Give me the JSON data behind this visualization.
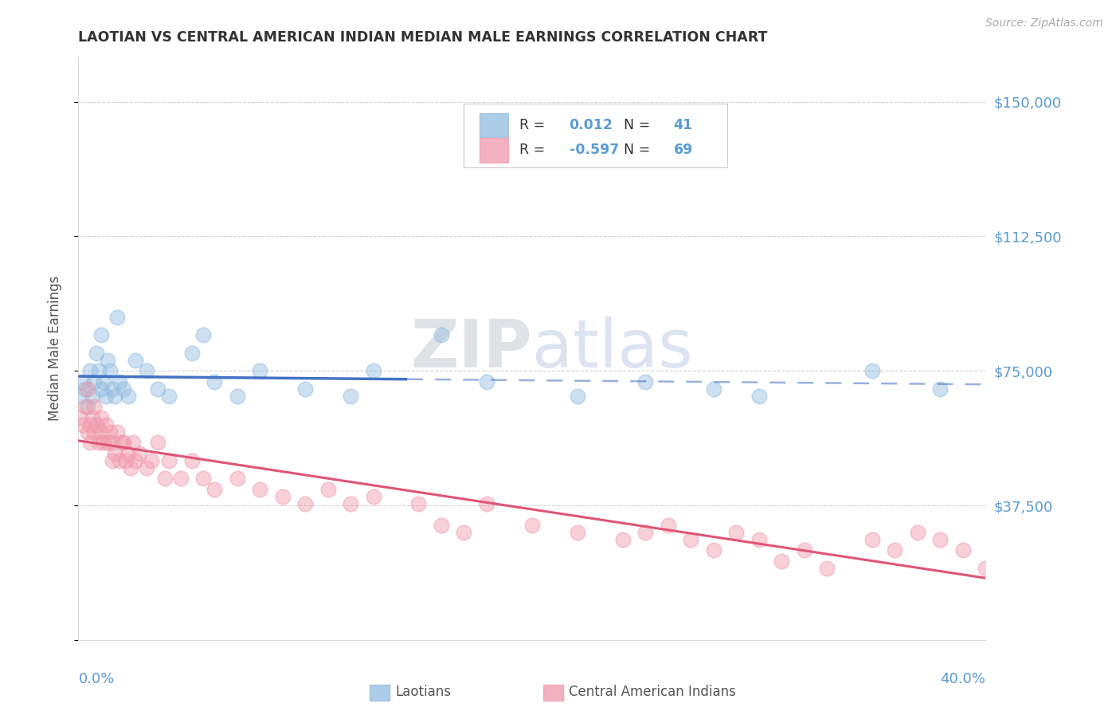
{
  "title": "LAOTIAN VS CENTRAL AMERICAN INDIAN MEDIAN MALE EARNINGS CORRELATION CHART",
  "source": "Source: ZipAtlas.com",
  "ylabel": "Median Male Earnings",
  "yticks": [
    0,
    37500,
    75000,
    112500,
    150000
  ],
  "ytick_labels": [
    "",
    "$37,500",
    "$75,000",
    "$112,500",
    "$150,000"
  ],
  "xlim": [
    0.0,
    40.0
  ],
  "ylim": [
    0,
    162500
  ],
  "watermark": "ZIPatlas",
  "lao_color": "#92bce0",
  "cai_color": "#f099aa",
  "trend_blue": "#4472c4",
  "trend_pink": "#e05575",
  "grid_color": "#cccccc",
  "title_color": "#333333",
  "tick_color": "#5b9bd5",
  "ylabel_color": "#555555",
  "legend_label1": "Laotians",
  "legend_label2": "Central American Indians",
  "lao_x": [
    0.1,
    0.2,
    0.3,
    0.4,
    0.5,
    0.6,
    0.7,
    0.8,
    0.9,
    1.0,
    1.0,
    1.1,
    1.2,
    1.3,
    1.4,
    1.5,
    1.6,
    1.7,
    1.8,
    2.0,
    2.2,
    2.5,
    3.0,
    3.5,
    4.0,
    5.0,
    5.5,
    6.0,
    7.0,
    8.0,
    10.0,
    12.0,
    13.0,
    16.0,
    18.0,
    22.0,
    25.0,
    28.0,
    30.0,
    35.0,
    38.0
  ],
  "lao_y": [
    68000,
    72000,
    70000,
    65000,
    75000,
    68000,
    72000,
    80000,
    75000,
    70000,
    85000,
    72000,
    68000,
    78000,
    75000,
    70000,
    68000,
    90000,
    72000,
    70000,
    68000,
    78000,
    75000,
    70000,
    68000,
    80000,
    85000,
    72000,
    68000,
    75000,
    70000,
    68000,
    75000,
    85000,
    72000,
    68000,
    72000,
    70000,
    68000,
    75000,
    70000
  ],
  "cai_x": [
    0.1,
    0.2,
    0.3,
    0.4,
    0.4,
    0.5,
    0.5,
    0.6,
    0.7,
    0.7,
    0.8,
    0.9,
    1.0,
    1.0,
    1.1,
    1.2,
    1.3,
    1.4,
    1.5,
    1.5,
    1.6,
    1.7,
    1.8,
    1.9,
    2.0,
    2.1,
    2.2,
    2.3,
    2.4,
    2.5,
    2.7,
    3.0,
    3.2,
    3.5,
    3.8,
    4.0,
    4.5,
    5.0,
    5.5,
    6.0,
    7.0,
    8.0,
    9.0,
    10.0,
    11.0,
    12.0,
    13.0,
    15.0,
    16.0,
    17.0,
    18.0,
    20.0,
    22.0,
    24.0,
    25.0,
    26.0,
    27.0,
    28.0,
    29.0,
    30.0,
    31.0,
    32.0,
    33.0,
    35.0,
    36.0,
    37.0,
    38.0,
    39.0,
    40.0
  ],
  "cai_y": [
    62000,
    60000,
    65000,
    58000,
    70000,
    60000,
    55000,
    62000,
    65000,
    58000,
    60000,
    55000,
    58000,
    62000,
    55000,
    60000,
    55000,
    58000,
    50000,
    55000,
    52000,
    58000,
    50000,
    55000,
    55000,
    50000,
    52000,
    48000,
    55000,
    50000,
    52000,
    48000,
    50000,
    55000,
    45000,
    50000,
    45000,
    50000,
    45000,
    42000,
    45000,
    42000,
    40000,
    38000,
    42000,
    38000,
    40000,
    38000,
    32000,
    30000,
    38000,
    32000,
    30000,
    28000,
    30000,
    32000,
    28000,
    25000,
    30000,
    28000,
    22000,
    25000,
    20000,
    28000,
    25000,
    30000,
    28000,
    25000,
    20000
  ],
  "trend_lao_intercept": 71500,
  "trend_lao_slope": 30,
  "trend_cai_intercept": 60000,
  "trend_cai_slope": -1100
}
